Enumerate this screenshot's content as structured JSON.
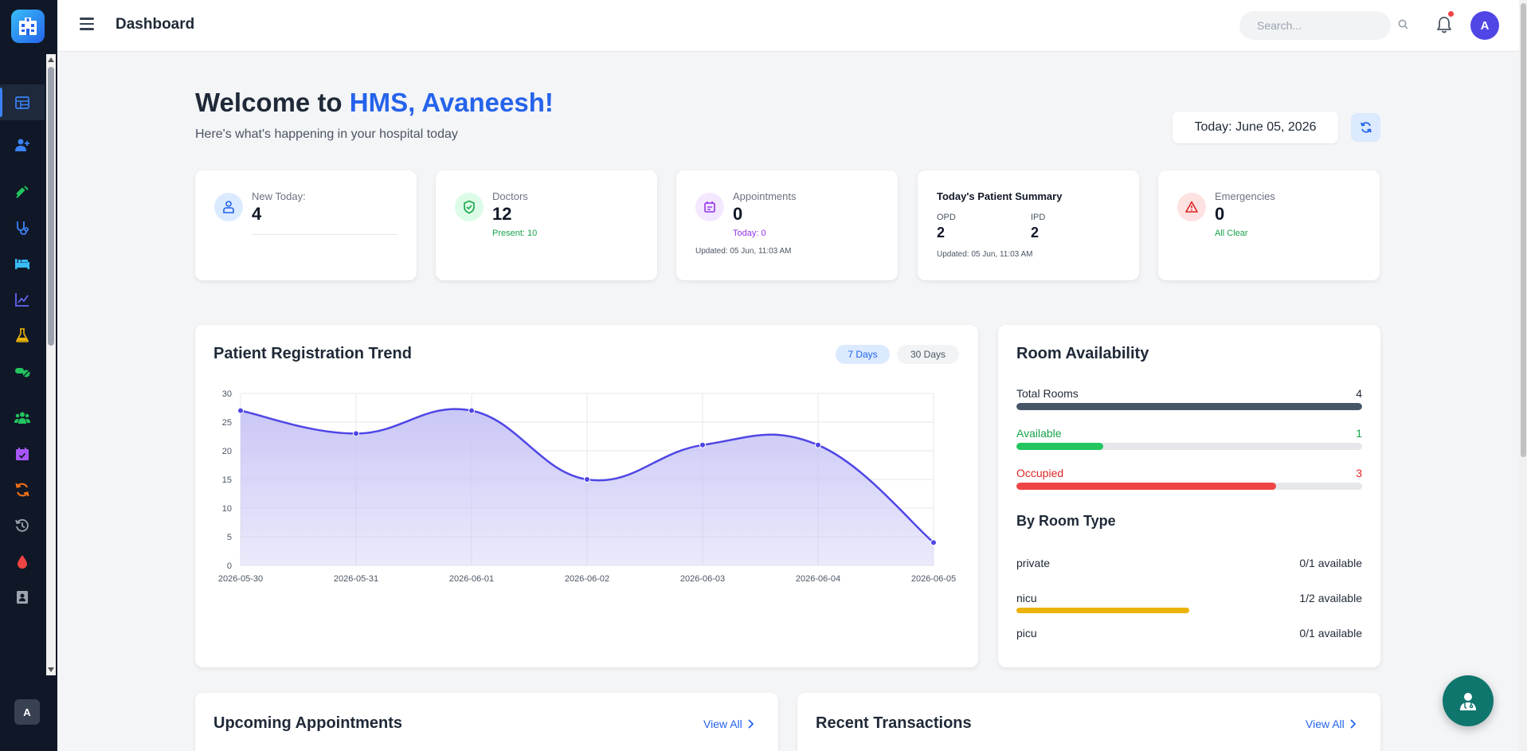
{
  "app": {
    "page_title": "Dashboard",
    "user_initial": "A",
    "sidebar_user_initial": "A"
  },
  "topbar": {
    "search_placeholder": "Search..."
  },
  "sidebar": {
    "items": [
      {
        "icon": "dashboard-grid-icon",
        "color": "#3b82f6",
        "active": true
      },
      {
        "icon": "user-plus-icon",
        "color": "#3b82f6"
      },
      {
        "icon": "syringe-icon",
        "color": "#22c55e"
      },
      {
        "icon": "stethoscope-icon",
        "color": "#3b82f6"
      },
      {
        "icon": "bed-icon",
        "color": "#38bdf8"
      },
      {
        "icon": "line-chart-icon",
        "color": "#6366f1"
      },
      {
        "icon": "flask-icon",
        "color": "#eab308"
      },
      {
        "icon": "pills-icon",
        "color": "#22c55e"
      },
      {
        "icon": "users-icon",
        "color": "#22c55e"
      },
      {
        "icon": "calendar-check-icon",
        "color": "#a855f7"
      },
      {
        "icon": "sync-icon",
        "color": "#f97316"
      },
      {
        "icon": "history-icon",
        "color": "#9ca3af"
      },
      {
        "icon": "blood-drop-icon",
        "color": "#ef4444"
      },
      {
        "icon": "address-book-icon",
        "color": "#9ca3af"
      }
    ]
  },
  "welcome": {
    "prefix": "Welcome to ",
    "highlight": "HMS, Avaneesh!",
    "subtitle": "Here's what's happening in your hospital today",
    "date_text": "Today: June 05, 2026"
  },
  "stats": {
    "new_today": {
      "label": "New Today:",
      "value": "4"
    },
    "doctors": {
      "label": "Doctors",
      "value": "12",
      "sub": "Present: 10"
    },
    "appointments": {
      "label": "Appointments",
      "value": "0",
      "sub": "Today: 0",
      "updated": "Updated: 05 Jun, 11:03 AM"
    },
    "summary": {
      "title": "Today's Patient Summary",
      "opd_label": "OPD",
      "opd_value": "2",
      "ipd_label": "IPD",
      "ipd_value": "2",
      "updated": "Updated: 05 Jun, 11:03 AM"
    },
    "emergencies": {
      "label": "Emergencies",
      "value": "0",
      "sub": "All Clear"
    }
  },
  "trend": {
    "title": "Patient Registration Trend",
    "range_7": "7 Days",
    "range_30": "30 Days"
  },
  "chart_data": {
    "type": "area",
    "title": "Patient Registration Trend",
    "x": [
      "2026-05-30",
      "2026-05-31",
      "2026-06-01",
      "2026-06-02",
      "2026-06-03",
      "2026-06-04",
      "2026-06-05"
    ],
    "series": [
      {
        "values": [
          27,
          23,
          27,
          15,
          21,
          21,
          4
        ]
      }
    ],
    "ylim": [
      0,
      30
    ],
    "yticks": [
      0,
      5,
      10,
      15,
      20,
      25,
      30
    ],
    "grid": true,
    "colors": {
      "line": "#4f46e5",
      "fill": "#c7c4f5"
    }
  },
  "rooms": {
    "title": "Room Availability",
    "total": {
      "label": "Total Rooms",
      "value": "4",
      "fraction": 1.0,
      "color": "#475569"
    },
    "available": {
      "label": "Available",
      "value": "1",
      "fraction": 0.25,
      "color": "#22c55e"
    },
    "occupied": {
      "label": "Occupied",
      "value": "3",
      "fraction": 0.75,
      "color": "#ef4444"
    },
    "by_type_title": "By Room Type",
    "types": [
      {
        "name": "private",
        "avail": "0/1 available",
        "fraction": 0
      },
      {
        "name": "nicu",
        "avail": "1/2 available",
        "fraction": 0.5
      },
      {
        "name": "picu",
        "avail": "0/1 available",
        "fraction": 0
      }
    ]
  },
  "upcoming": {
    "title": "Upcoming Appointments",
    "view_all": "View All"
  },
  "transactions": {
    "title": "Recent Transactions",
    "view_all": "View All"
  }
}
